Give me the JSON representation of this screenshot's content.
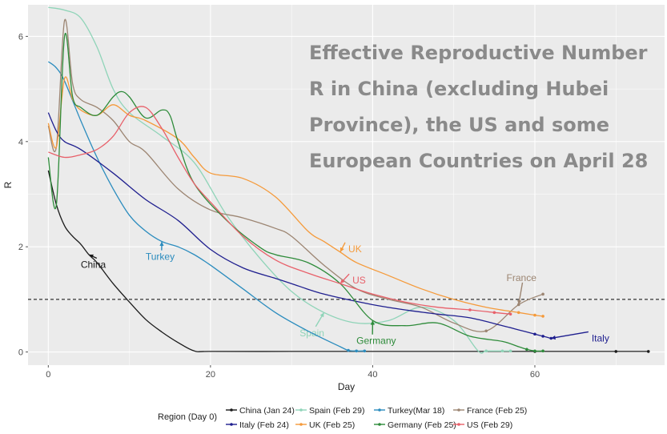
{
  "overlay_title": "Effective Reproductive Number R in China (excluding Hubei Province), the US and some European Countries on April 28",
  "chart_data": {
    "type": "line",
    "title": "",
    "xlabel": "Day",
    "ylabel": "R",
    "xlim": [
      -2.5,
      76
    ],
    "ylim": [
      -0.25,
      6.6
    ],
    "x_ticks": [
      0,
      20,
      40,
      60
    ],
    "y_ticks": [
      0,
      2,
      4,
      6
    ],
    "grid": true,
    "reference_line": {
      "y": 1,
      "style": "dashed",
      "color": "#333333"
    },
    "legend": {
      "title": "Region (Day 0)",
      "placement": "bottom"
    },
    "series": [
      {
        "name": "China (Jan 24)",
        "label": "China",
        "color": "#1a1a1a",
        "x": [
          0,
          1,
          2,
          3,
          4,
          5,
          6,
          8,
          10,
          12,
          14,
          16,
          18,
          20,
          30,
          40,
          50,
          60,
          70,
          74
        ],
        "y": [
          3.45,
          2.8,
          2.4,
          2.2,
          2.05,
          1.85,
          1.7,
          1.3,
          0.95,
          0.62,
          0.38,
          0.18,
          0.02,
          0.01,
          0.01,
          0.01,
          0.01,
          0.01,
          0.01,
          0.01
        ],
        "annotation": {
          "x": 4,
          "y": 1.6
        }
      },
      {
        "name": "Spain (Feb 29)",
        "label": "Spain",
        "color": "#8fd4b8",
        "x": [
          0,
          2,
          4,
          6,
          8,
          10,
          14,
          18,
          22,
          26,
          30,
          34,
          38,
          42,
          46,
          50,
          53,
          54,
          56,
          57
        ],
        "y": [
          6.55,
          6.5,
          6.35,
          5.8,
          5.0,
          4.55,
          4.1,
          3.6,
          2.6,
          1.8,
          1.15,
          0.75,
          0.55,
          0.6,
          0.85,
          0.6,
          0.02,
          0.02,
          0.02,
          0.02
        ],
        "annotation": {
          "x": 31,
          "y": 0.3
        }
      },
      {
        "name": "Turkey(Mar 18)",
        "label": "Turkey",
        "color": "#2b8cbe",
        "x": [
          0,
          1,
          2,
          4,
          6,
          8,
          10,
          12,
          14,
          16,
          18,
          20,
          24,
          28,
          32,
          36,
          37,
          38,
          39
        ],
        "y": [
          5.52,
          5.4,
          5.15,
          4.4,
          3.7,
          3.1,
          2.6,
          2.3,
          2.1,
          2.0,
          1.85,
          1.65,
          1.2,
          0.75,
          0.4,
          0.1,
          0.03,
          0.02,
          0.02
        ],
        "annotation": {
          "x": 12,
          "y": 1.75
        }
      },
      {
        "name": "France (Feb 25)",
        "label": "France",
        "color": "#9c8572",
        "x": [
          0,
          1,
          2,
          3,
          4,
          6,
          8,
          10,
          12,
          16,
          20,
          24,
          28,
          30,
          34,
          38,
          42,
          46,
          50,
          54,
          58,
          61
        ],
        "y": [
          4.3,
          3.9,
          6.3,
          5.1,
          4.8,
          4.65,
          4.4,
          4.0,
          3.8,
          3.1,
          2.7,
          2.55,
          2.35,
          2.2,
          1.65,
          1.2,
          1.0,
          0.85,
          0.55,
          0.4,
          0.9,
          1.1
        ],
        "annotation": {
          "x": 56.5,
          "y": 1.35
        }
      },
      {
        "name": "Italy (Feb 24)",
        "label": "Italy",
        "color": "#1f1f8f",
        "x": [
          0,
          1,
          2,
          4,
          8,
          12,
          16,
          20,
          24,
          28,
          30,
          34,
          40,
          44,
          48,
          52,
          56,
          58,
          60,
          61,
          62
        ],
        "y": [
          4.55,
          4.2,
          4.0,
          3.85,
          3.4,
          2.9,
          2.5,
          1.95,
          1.6,
          1.4,
          1.3,
          1.1,
          0.9,
          0.8,
          0.72,
          0.65,
          0.5,
          0.42,
          0.34,
          0.3,
          0.26
        ],
        "annotation": {
          "x": 67,
          "y": 0.2
        }
      },
      {
        "name": "UK (Feb 25)",
        "label": "UK",
        "color": "#f59a3a",
        "x": [
          0,
          1,
          2,
          3,
          4,
          6,
          8,
          10,
          12,
          16,
          18,
          20,
          24,
          28,
          32,
          34,
          36,
          38,
          42,
          46,
          50,
          54,
          58,
          60,
          61
        ],
        "y": [
          4.35,
          3.9,
          5.2,
          4.8,
          4.6,
          4.5,
          4.7,
          4.5,
          4.4,
          4.05,
          3.7,
          3.4,
          3.3,
          2.95,
          2.3,
          2.1,
          1.9,
          1.7,
          1.45,
          1.2,
          1.0,
          0.85,
          0.75,
          0.7,
          0.68
        ],
        "annotation": {
          "x": 37,
          "y": 1.9
        }
      },
      {
        "name": "Germany (Feb 25)",
        "label": "Germany",
        "color": "#2e8b3a",
        "x": [
          0,
          1,
          2,
          3,
          4,
          6,
          8,
          9,
          10,
          12,
          14,
          15,
          16,
          18,
          22,
          26,
          28,
          32,
          36,
          40,
          44,
          48,
          52,
          56,
          58,
          59,
          60,
          61
        ],
        "y": [
          3.7,
          2.8,
          6.0,
          4.85,
          4.65,
          4.5,
          4.85,
          4.95,
          4.85,
          4.45,
          4.6,
          4.5,
          4.0,
          3.2,
          2.5,
          2.0,
          1.85,
          1.7,
          1.3,
          0.6,
          0.5,
          0.55,
          0.3,
          0.2,
          0.1,
          0.05,
          0.02,
          0.02
        ],
        "annotation": {
          "x": 38,
          "y": 0.15
        }
      },
      {
        "name": "US (Feb 29)",
        "label": "US",
        "color": "#e8606a",
        "x": [
          0,
          2,
          4,
          6,
          8,
          10,
          12,
          14,
          16,
          18,
          20,
          24,
          28,
          32,
          36,
          40,
          44,
          48,
          52,
          55,
          57
        ],
        "y": [
          3.8,
          3.7,
          3.75,
          3.85,
          4.1,
          4.55,
          4.65,
          4.25,
          3.7,
          3.2,
          2.85,
          2.2,
          1.75,
          1.5,
          1.3,
          1.1,
          0.95,
          0.85,
          0.8,
          0.75,
          0.72
        ],
        "annotation": {
          "x": 37.5,
          "y": 1.3
        }
      }
    ]
  }
}
